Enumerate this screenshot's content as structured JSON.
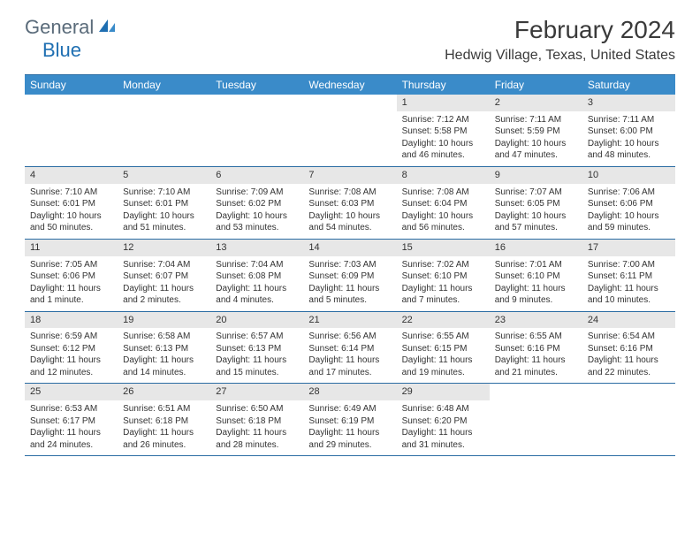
{
  "logo_text_1": "General",
  "logo_text_2": "Blue",
  "logo_color_gray": "#5a6b7a",
  "logo_color_blue": "#1f6fb2",
  "header_accent": "#3a8bc9",
  "border_color": "#2b6ca3",
  "daynum_bg": "#e7e7e7",
  "background_color": "#ffffff",
  "text_color": "#333333",
  "month_title": "February 2024",
  "location": "Hedwig Village, Texas, United States",
  "day_names": [
    "Sunday",
    "Monday",
    "Tuesday",
    "Wednesday",
    "Thursday",
    "Friday",
    "Saturday"
  ],
  "weeks": [
    [
      {
        "n": "",
        "s": "",
        "t": "",
        "d": ""
      },
      {
        "n": "",
        "s": "",
        "t": "",
        "d": ""
      },
      {
        "n": "",
        "s": "",
        "t": "",
        "d": ""
      },
      {
        "n": "",
        "s": "",
        "t": "",
        "d": ""
      },
      {
        "n": "1",
        "s": "Sunrise: 7:12 AM",
        "t": "Sunset: 5:58 PM",
        "d": "Daylight: 10 hours and 46 minutes."
      },
      {
        "n": "2",
        "s": "Sunrise: 7:11 AM",
        "t": "Sunset: 5:59 PM",
        "d": "Daylight: 10 hours and 47 minutes."
      },
      {
        "n": "3",
        "s": "Sunrise: 7:11 AM",
        "t": "Sunset: 6:00 PM",
        "d": "Daylight: 10 hours and 48 minutes."
      }
    ],
    [
      {
        "n": "4",
        "s": "Sunrise: 7:10 AM",
        "t": "Sunset: 6:01 PM",
        "d": "Daylight: 10 hours and 50 minutes."
      },
      {
        "n": "5",
        "s": "Sunrise: 7:10 AM",
        "t": "Sunset: 6:01 PM",
        "d": "Daylight: 10 hours and 51 minutes."
      },
      {
        "n": "6",
        "s": "Sunrise: 7:09 AM",
        "t": "Sunset: 6:02 PM",
        "d": "Daylight: 10 hours and 53 minutes."
      },
      {
        "n": "7",
        "s": "Sunrise: 7:08 AM",
        "t": "Sunset: 6:03 PM",
        "d": "Daylight: 10 hours and 54 minutes."
      },
      {
        "n": "8",
        "s": "Sunrise: 7:08 AM",
        "t": "Sunset: 6:04 PM",
        "d": "Daylight: 10 hours and 56 minutes."
      },
      {
        "n": "9",
        "s": "Sunrise: 7:07 AM",
        "t": "Sunset: 6:05 PM",
        "d": "Daylight: 10 hours and 57 minutes."
      },
      {
        "n": "10",
        "s": "Sunrise: 7:06 AM",
        "t": "Sunset: 6:06 PM",
        "d": "Daylight: 10 hours and 59 minutes."
      }
    ],
    [
      {
        "n": "11",
        "s": "Sunrise: 7:05 AM",
        "t": "Sunset: 6:06 PM",
        "d": "Daylight: 11 hours and 1 minute."
      },
      {
        "n": "12",
        "s": "Sunrise: 7:04 AM",
        "t": "Sunset: 6:07 PM",
        "d": "Daylight: 11 hours and 2 minutes."
      },
      {
        "n": "13",
        "s": "Sunrise: 7:04 AM",
        "t": "Sunset: 6:08 PM",
        "d": "Daylight: 11 hours and 4 minutes."
      },
      {
        "n": "14",
        "s": "Sunrise: 7:03 AM",
        "t": "Sunset: 6:09 PM",
        "d": "Daylight: 11 hours and 5 minutes."
      },
      {
        "n": "15",
        "s": "Sunrise: 7:02 AM",
        "t": "Sunset: 6:10 PM",
        "d": "Daylight: 11 hours and 7 minutes."
      },
      {
        "n": "16",
        "s": "Sunrise: 7:01 AM",
        "t": "Sunset: 6:10 PM",
        "d": "Daylight: 11 hours and 9 minutes."
      },
      {
        "n": "17",
        "s": "Sunrise: 7:00 AM",
        "t": "Sunset: 6:11 PM",
        "d": "Daylight: 11 hours and 10 minutes."
      }
    ],
    [
      {
        "n": "18",
        "s": "Sunrise: 6:59 AM",
        "t": "Sunset: 6:12 PM",
        "d": "Daylight: 11 hours and 12 minutes."
      },
      {
        "n": "19",
        "s": "Sunrise: 6:58 AM",
        "t": "Sunset: 6:13 PM",
        "d": "Daylight: 11 hours and 14 minutes."
      },
      {
        "n": "20",
        "s": "Sunrise: 6:57 AM",
        "t": "Sunset: 6:13 PM",
        "d": "Daylight: 11 hours and 15 minutes."
      },
      {
        "n": "21",
        "s": "Sunrise: 6:56 AM",
        "t": "Sunset: 6:14 PM",
        "d": "Daylight: 11 hours and 17 minutes."
      },
      {
        "n": "22",
        "s": "Sunrise: 6:55 AM",
        "t": "Sunset: 6:15 PM",
        "d": "Daylight: 11 hours and 19 minutes."
      },
      {
        "n": "23",
        "s": "Sunrise: 6:55 AM",
        "t": "Sunset: 6:16 PM",
        "d": "Daylight: 11 hours and 21 minutes."
      },
      {
        "n": "24",
        "s": "Sunrise: 6:54 AM",
        "t": "Sunset: 6:16 PM",
        "d": "Daylight: 11 hours and 22 minutes."
      }
    ],
    [
      {
        "n": "25",
        "s": "Sunrise: 6:53 AM",
        "t": "Sunset: 6:17 PM",
        "d": "Daylight: 11 hours and 24 minutes."
      },
      {
        "n": "26",
        "s": "Sunrise: 6:51 AM",
        "t": "Sunset: 6:18 PM",
        "d": "Daylight: 11 hours and 26 minutes."
      },
      {
        "n": "27",
        "s": "Sunrise: 6:50 AM",
        "t": "Sunset: 6:18 PM",
        "d": "Daylight: 11 hours and 28 minutes."
      },
      {
        "n": "28",
        "s": "Sunrise: 6:49 AM",
        "t": "Sunset: 6:19 PM",
        "d": "Daylight: 11 hours and 29 minutes."
      },
      {
        "n": "29",
        "s": "Sunrise: 6:48 AM",
        "t": "Sunset: 6:20 PM",
        "d": "Daylight: 11 hours and 31 minutes."
      },
      {
        "n": "",
        "s": "",
        "t": "",
        "d": ""
      },
      {
        "n": "",
        "s": "",
        "t": "",
        "d": ""
      }
    ]
  ]
}
